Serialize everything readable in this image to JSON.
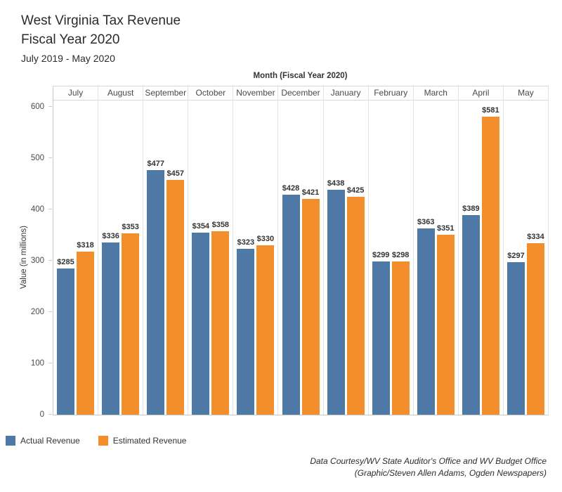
{
  "header": {
    "title_line1": "West Virginia Tax Revenue",
    "title_line2": "Fiscal Year 2020",
    "subtitle": "July 2019 - May 2020"
  },
  "chart_data": {
    "type": "bar",
    "title": "West Virginia Tax Revenue Fiscal Year 2020 (July 2019 - May 2020)",
    "x_axis_title": "Month (Fiscal Year 2020)",
    "ylabel": "Value (in millions)",
    "ylim": [
      0,
      600
    ],
    "yticks": [
      0,
      100,
      200,
      300,
      400,
      500,
      600
    ],
    "grid": "vertical pane separators only",
    "legend_position": "bottom-left",
    "categories": [
      "July",
      "August",
      "September",
      "October",
      "November",
      "December",
      "January",
      "February",
      "March",
      "April",
      "May"
    ],
    "series": [
      {
        "name": "Actual Revenue",
        "color": "#4e79a7",
        "values": [
          285,
          336,
          477,
          354,
          323,
          428,
          438,
          299,
          363,
          389,
          297
        ],
        "labels": [
          "$285",
          "$336",
          "$477",
          "$354",
          "$323",
          "$428",
          "$438",
          "$299",
          "$363",
          "$389",
          "$297"
        ]
      },
      {
        "name": "Estimated Revenue",
        "color": "#f28e2b",
        "values": [
          318,
          353,
          457,
          358,
          330,
          421,
          425,
          298,
          351,
          581,
          334
        ],
        "labels": [
          "$318",
          "$353",
          "$457",
          "$358",
          "$330",
          "$421",
          "$425",
          "$298",
          "$351",
          "$581",
          "$334"
        ]
      }
    ]
  },
  "legend": {
    "items": [
      {
        "label": "Actual Revenue",
        "color": "#4e79a7"
      },
      {
        "label": "Estimated Revenue",
        "color": "#f28e2b"
      }
    ]
  },
  "footer": {
    "line1": "Data Courtesy/WV State Auditor's Office and WV Budget Office",
    "line2": "(Graphic/Steven Allen Adams, Ogden Newspapers)"
  }
}
